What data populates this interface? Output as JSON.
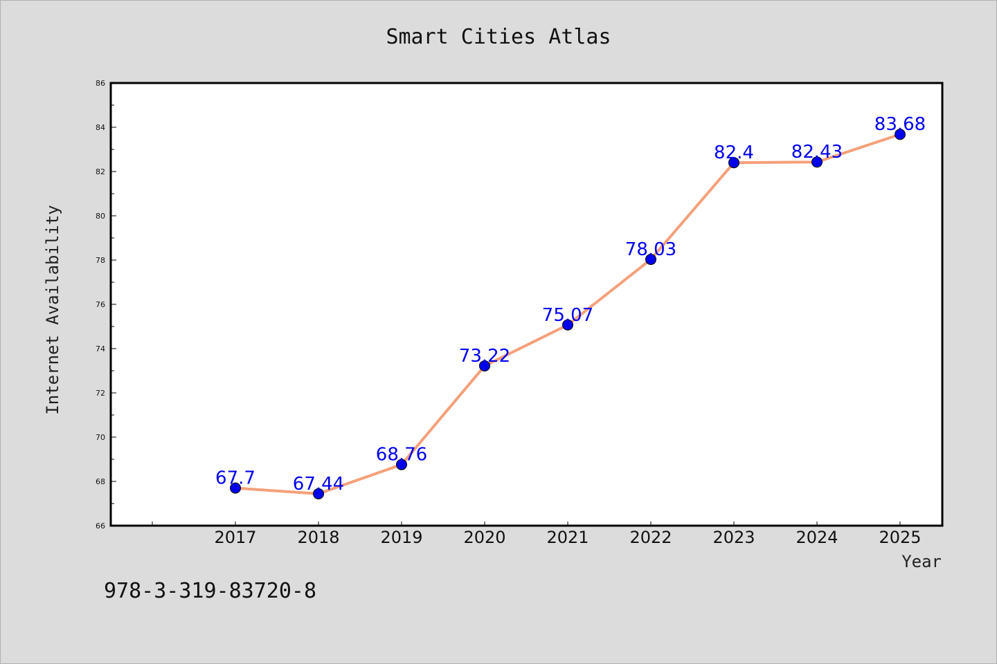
{
  "chart_data": {
    "type": "line",
    "title": "Smart Cities Atlas",
    "xlabel": "Year",
    "ylabel": "Internet Availability",
    "categories": [
      "2017",
      "2018",
      "2019",
      "2020",
      "2021",
      "2022",
      "2023",
      "2024",
      "2025"
    ],
    "series": [
      {
        "values": [
          67.7,
          67.44,
          68.76,
          73.22,
          75.07,
          78.03,
          82.4,
          82.43,
          83.68
        ],
        "labels": [
          "67.7",
          "67.44",
          "68.76",
          "73.22",
          "75.07",
          "78.03",
          "82.4",
          "82.43",
          "83.68"
        ],
        "color": "#f4a07a",
        "marker_color": "#0000ee"
      }
    ],
    "yticks": [
      "66",
      "68",
      "70",
      "72",
      "74",
      "76",
      "78",
      "80",
      "82",
      "84",
      "86"
    ],
    "ylim": [
      66,
      86
    ],
    "grid": false,
    "legend": "none"
  },
  "footer": {
    "isbn": "978-3-319-83720-8"
  }
}
